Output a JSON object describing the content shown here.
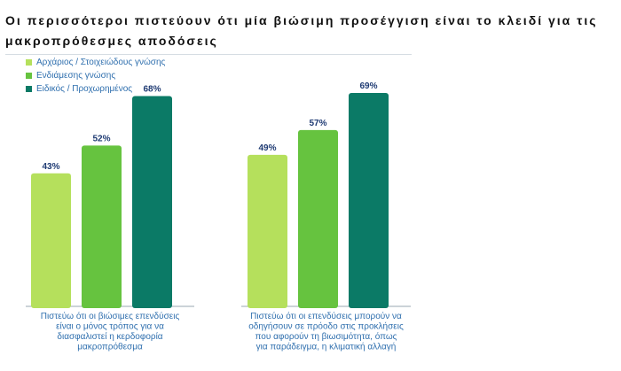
{
  "title": "Οι περισσότεροι πιστεύουν ότι μία βιώσιμη προσέγγιση είναι το κλειδί για τις μακροπρόθεσμες αποδόσεις",
  "colors": {
    "beginner": "#b5e05c",
    "intermediate": "#66c33f",
    "expert": "#0b7a66",
    "value_label": "#1f3b73",
    "category_label": "#2f6fae",
    "axis": "#9aa7b0"
  },
  "chart_data": {
    "type": "bar",
    "title": "Οι περισσότεροι πιστεύουν ότι μία βιώσιμη προσέγγιση είναι το κλειδί για τις μακροπρόθεσμες αποδόσεις",
    "categories": [
      [
        "Πιστεύω ότι οι βιώσιμες επενδύσεις",
        "είναι ο μόνος τρόπος για να",
        "διασφαλιστεί η κερδοφορία",
        "μακροπρόθεσμα"
      ],
      [
        "Πιστεύω ότι οι επενδύσεις μπορούν να",
        "οδηγήσουν σε πρόοδο στις προκλήσεις",
        "που αφορούν τη βιωσιμότητα, όπως",
        "για παράδειγμα, η κλιματική αλλαγή"
      ]
    ],
    "series": [
      {
        "name": "Αρχάριος / Στοιχειώδους γνώσης",
        "values": [
          43,
          49
        ],
        "labels": [
          "43%",
          "49%"
        ],
        "color": "#b5e05c"
      },
      {
        "name": "Ενδιάμεσης γνώσης",
        "values": [
          52,
          57
        ],
        "labels": [
          "52%",
          "57%"
        ],
        "color": "#66c33f"
      },
      {
        "name": "Ειδικός / Προχωρημένος",
        "values": [
          68,
          69
        ],
        "labels": [
          "68%",
          "69%"
        ],
        "color": "#0b7a66"
      }
    ],
    "ylim": [
      0,
      75
    ],
    "grid": false,
    "legend_position": "top-left"
  }
}
